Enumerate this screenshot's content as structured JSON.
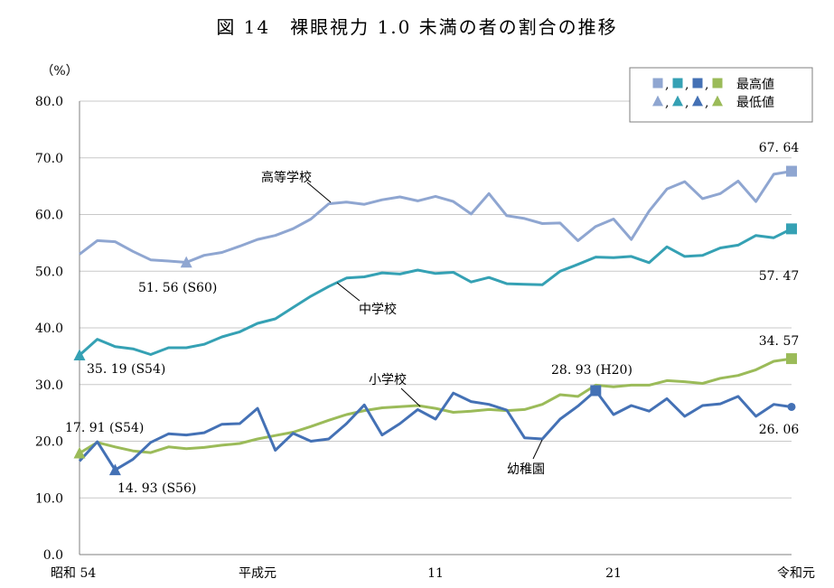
{
  "title": "図 14　裸眼視力 1.0 未満の者の割合の推移",
  "chart_data": {
    "type": "line",
    "ylabel": "（%）",
    "ylim": [
      0,
      80
    ],
    "yticks": [
      "0.0",
      "10.0",
      "20.0",
      "30.0",
      "40.0",
      "50.0",
      "60.0",
      "70.0",
      "80.0"
    ],
    "x_tick_labels": [
      {
        "index": 0,
        "label": "昭和 54"
      },
      {
        "index": 10,
        "label": "平成元"
      },
      {
        "index": 20,
        "label": "11"
      },
      {
        "index": 30,
        "label": "21"
      },
      {
        "index": 40,
        "label": "令和元"
      }
    ],
    "grid": true,
    "legend": {
      "position": "top-right",
      "max_label": "最高値",
      "min_label": "最低値",
      "max_glyph_sep": ",",
      "min_glyph_sep": ","
    },
    "series": [
      {
        "name": "高等学校",
        "color": "#8fa6d1",
        "values": [
          53.0,
          55.4,
          55.2,
          53.5,
          52.0,
          51.8,
          51.56,
          52.8,
          53.3,
          54.4,
          55.6,
          56.3,
          57.5,
          59.2,
          61.9,
          62.2,
          61.8,
          62.6,
          63.1,
          62.4,
          63.2,
          62.3,
          60.1,
          63.7,
          59.8,
          59.3,
          58.4,
          58.5,
          55.4,
          57.9,
          59.2,
          55.6,
          60.6,
          64.5,
          65.8,
          62.8,
          63.7,
          65.9,
          62.3,
          67.1,
          67.64
        ],
        "max": {
          "index": 40,
          "value": 67.64,
          "label": "67. 64"
        },
        "min": {
          "index": 6,
          "value": 51.56,
          "label": "51. 56 (S60)"
        },
        "name_label": "高等学校"
      },
      {
        "name": "中学校",
        "color": "#35a1b4",
        "values": [
          35.19,
          38.0,
          36.7,
          36.3,
          35.3,
          36.5,
          36.5,
          37.1,
          38.4,
          39.3,
          40.8,
          41.6,
          43.6,
          45.6,
          47.3,
          48.8,
          49.0,
          49.7,
          49.5,
          50.2,
          49.6,
          49.8,
          48.1,
          48.9,
          47.8,
          47.7,
          47.6,
          50.0,
          51.2,
          52.5,
          52.4,
          52.6,
          51.5,
          54.3,
          52.6,
          52.8,
          54.1,
          54.6,
          56.3,
          55.9,
          57.47
        ],
        "max": {
          "index": 40,
          "value": 57.47,
          "label": "57. 47"
        },
        "min": {
          "index": 0,
          "value": 35.19,
          "label": "35. 19 (S54)"
        },
        "name_label": "中学校"
      },
      {
        "name": "小学校",
        "color": "#9bbb59",
        "values": [
          17.91,
          19.8,
          19.0,
          18.3,
          18.0,
          19.0,
          18.7,
          18.9,
          19.3,
          19.6,
          20.4,
          21.0,
          21.6,
          22.6,
          23.7,
          24.7,
          25.4,
          25.9,
          26.1,
          26.3,
          25.8,
          25.1,
          25.3,
          25.6,
          25.4,
          25.6,
          26.5,
          28.2,
          27.9,
          29.9,
          29.6,
          29.9,
          29.9,
          30.7,
          30.5,
          30.2,
          31.1,
          31.6,
          32.6,
          34.1,
          34.57
        ],
        "max": {
          "index": 40,
          "value": 34.57,
          "label": "34. 57"
        },
        "min": {
          "index": 0,
          "value": 17.91,
          "label": "17. 91 (S54)"
        },
        "name_label": "小学校"
      },
      {
        "name": "幼稚園",
        "color": "#4471b5",
        "values": [
          16.5,
          19.9,
          14.93,
          16.8,
          19.8,
          21.3,
          21.1,
          21.5,
          23.0,
          23.1,
          25.8,
          18.4,
          21.4,
          20.0,
          20.4,
          23.1,
          26.4,
          21.1,
          23.1,
          25.6,
          23.9,
          28.5,
          27.0,
          26.5,
          25.5,
          20.6,
          20.4,
          23.9,
          26.2,
          28.93,
          24.7,
          26.3,
          25.3,
          27.5,
          24.4,
          26.3,
          26.6,
          27.9,
          24.4,
          26.5,
          26.06
        ],
        "max": {
          "index": 29,
          "value": 28.93,
          "label": "28. 93 (H20)"
        },
        "min": {
          "index": 2,
          "value": 14.93,
          "label": "14. 93 (S56)"
        },
        "last_label": "26. 06",
        "name_label": "幼稚園"
      }
    ]
  }
}
